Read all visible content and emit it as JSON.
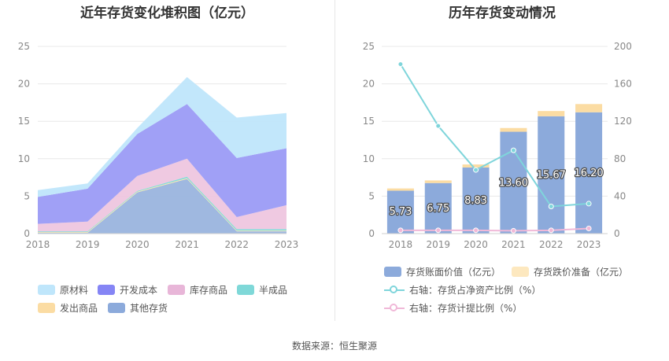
{
  "left_chart": {
    "title": "近年存货变化堆积图（亿元）",
    "legend_row1": [
      "原材料",
      "开发成本",
      "库存商品",
      "半成品"
    ],
    "legend_row2": [
      "发出商品",
      "其他存货"
    ]
  },
  "right_chart": {
    "title": "历年存货变动情况",
    "legend": {
      "bar1": "存货账面价值（亿元）",
      "bar2": "存货跌价准备（亿元）",
      "line1": "右轴：存货占净资产比例（%）",
      "line2": "右轴：存货计提比例（%）"
    }
  },
  "source": "数据来源：恒生聚源",
  "colors": {
    "raw_materials": "#bfe6fb",
    "development_cost": "#9b9bf5",
    "inventory_goods": "#eec6df",
    "semi_finished": "#7fd8d8",
    "shipped_goods": "#fde3a8",
    "other_inventory": "#9ab4de",
    "book_value": "#8caadb",
    "impairment": "#fbdca3",
    "ratio_net_assets": "#7fd5db",
    "provision_ratio": "#f0b8d8",
    "grid": "#e8e8e8",
    "axis_text": "#888888"
  },
  "chart_data": [
    {
      "type": "area",
      "stacked": true,
      "categories": [
        "2018",
        "2019",
        "2020",
        "2021",
        "2022",
        "2023"
      ],
      "ylim": [
        0,
        25
      ],
      "yticks": [
        0,
        5,
        10,
        15,
        20,
        25
      ],
      "grid": true,
      "legend_position": "bottom",
      "series": [
        {
          "name": "其他存货",
          "values": [
            0.1,
            0.1,
            5.5,
            7.3,
            0.3,
            0.3
          ]
        },
        {
          "name": "发出商品",
          "values": [
            0.1,
            0.1,
            0.1,
            0.1,
            0.1,
            0.1
          ]
        },
        {
          "name": "半成品",
          "values": [
            0.1,
            0.1,
            0.1,
            0.2,
            0.2,
            0.2
          ]
        },
        {
          "name": "库存商品",
          "values": [
            1.0,
            1.3,
            2.0,
            2.4,
            1.6,
            3.2
          ]
        },
        {
          "name": "开发成本",
          "values": [
            3.6,
            4.4,
            5.6,
            7.3,
            7.9,
            7.6
          ]
        },
        {
          "name": "原材料",
          "values": [
            0.9,
            0.7,
            0.8,
            3.6,
            5.4,
            4.7
          ]
        }
      ]
    },
    {
      "type": "bar",
      "stacked": true,
      "categories": [
        "2018",
        "2019",
        "2020",
        "2021",
        "2022",
        "2023"
      ],
      "ylim": [
        0,
        25
      ],
      "yticks": [
        0,
        5,
        10,
        15,
        20,
        25
      ],
      "y2lim": [
        0,
        200
      ],
      "y2ticks": [
        0,
        40,
        80,
        120,
        160,
        200
      ],
      "grid": true,
      "legend_position": "bottom",
      "series": [
        {
          "name": "存货账面价值（亿元）",
          "kind": "bar",
          "axis": "left",
          "values": [
            5.73,
            6.75,
            8.83,
            13.6,
            15.67,
            16.2
          ],
          "labels": [
            "5.73",
            "6.75",
            "8.83",
            "13.60",
            "15.67",
            "16.20"
          ]
        },
        {
          "name": "存货跌价准备（亿元）",
          "kind": "bar",
          "axis": "left",
          "values": [
            0.3,
            0.35,
            0.4,
            0.5,
            0.7,
            1.1
          ]
        },
        {
          "name": "右轴：存货占净资产比例（%）",
          "kind": "line",
          "axis": "right",
          "values": [
            181,
            115,
            68,
            89,
            29,
            32
          ]
        },
        {
          "name": "右轴：存货计提比例（%）",
          "kind": "line",
          "axis": "right",
          "values": [
            3.5,
            3.5,
            3.5,
            3.0,
            3.5,
            5.5
          ]
        }
      ]
    }
  ]
}
